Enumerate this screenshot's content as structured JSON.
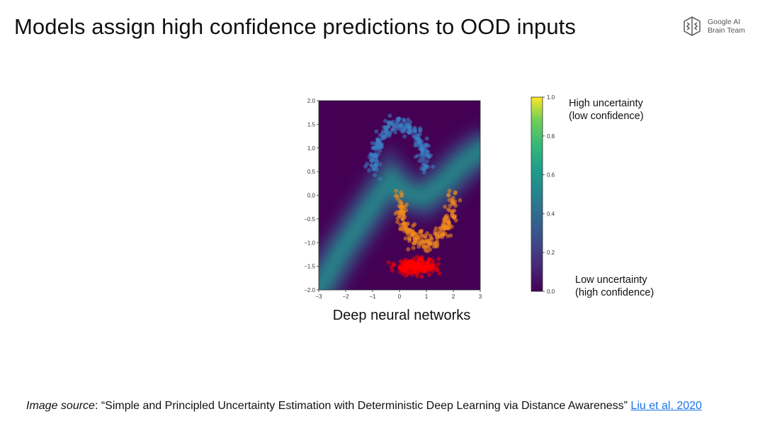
{
  "slide": {
    "title": "Models assign high confidence predictions to OOD inputs"
  },
  "logo": {
    "line1": "Google AI",
    "line2": "Brain Team",
    "icon": "brain-icon"
  },
  "chart_data": {
    "type": "heatmap",
    "title": "Deep neural networks",
    "xlim": [
      -3,
      3
    ],
    "ylim": [
      -2.0,
      2.0
    ],
    "x_ticks": [
      "−3",
      "−2",
      "−1",
      "0",
      "1",
      "2",
      "3"
    ],
    "y_ticks": [
      "2.0",
      "1.5",
      "1.0",
      "0.5",
      "0.0",
      "−0.5",
      "−1.0",
      "−1.5",
      "−2.0"
    ],
    "heatmap_description": "Predictive uncertainty surface; high-uncertainty ridge along decision boundary, low uncertainty elsewhere",
    "colormap": "viridis",
    "colors": {
      "low": "#440154",
      "mid": "#21918c",
      "high": "#fde725"
    },
    "series": [
      {
        "color": "#3b82c4",
        "shape": "upper moon",
        "center": [
          0.0,
          0.5
        ],
        "radius": 1.0,
        "angle_range_deg": [
          0,
          180
        ],
        "count": 220
      },
      {
        "color": "#f28c1c",
        "shape": "lower moon",
        "center": [
          1.0,
          0.0
        ],
        "radius": 1.0,
        "angle_range_deg": [
          180,
          360
        ],
        "count": 220
      },
      {
        "color": "#ff0000",
        "shape": "ood cluster",
        "center": [
          0.6,
          -1.5
        ],
        "spread": [
          0.35,
          0.08
        ],
        "count": 200
      }
    ],
    "colorbar": {
      "range": [
        0.0,
        1.0
      ],
      "ticks": [
        "1.0",
        "0.8",
        "0.6",
        "0.4",
        "0.2",
        "0.0"
      ],
      "high_label": [
        "High uncertainty",
        "(low confidence)"
      ],
      "low_label": [
        "Low uncertainty",
        "(high confidence)"
      ]
    }
  },
  "footer": {
    "lead": "Image source",
    "text": ": “Simple and Principled Uncertainty Estimation with Deterministic Deep Learning via Distance Awareness” ",
    "link": "Liu et al. 2020"
  }
}
